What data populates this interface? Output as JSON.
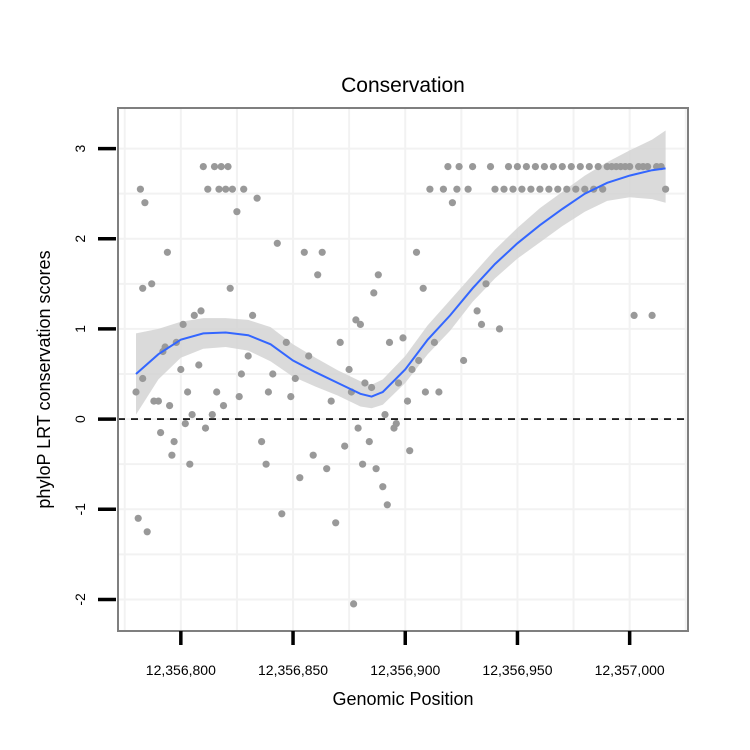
{
  "chart_data": {
    "type": "scatter",
    "title": "Conservation",
    "xlabel": "Genomic Position",
    "ylabel": "phyloP LRT conservation scores",
    "xlim": [
      12356772,
      12357026
    ],
    "ylim": [
      -2.35,
      3.45
    ],
    "x_ticks": [
      12356800,
      12356850,
      12356900,
      12356950,
      12357000
    ],
    "x_tick_labels": [
      "12,356,800",
      "12,356,850",
      "12,356,900",
      "12,356,950",
      "12,357,000"
    ],
    "y_ticks": [
      -2,
      -1,
      0,
      1,
      2,
      3
    ],
    "y_tick_labels": [
      "-2",
      "-1",
      "0",
      "1",
      "2",
      "3"
    ],
    "reference_line": {
      "y": 0,
      "style": "dashed"
    },
    "colors": {
      "points": "#999999",
      "smooth": "#3366ff",
      "band": "#d3d3d3",
      "panel_border": "#7f7f7f",
      "grid": "#f2f2f2"
    },
    "series": [
      {
        "name": "phyloP scores",
        "kind": "points",
        "x": [
          12356780,
          12356781,
          12356782,
          12356783,
          12356783,
          12356784,
          12356785,
          12356787,
          12356788,
          12356790,
          12356791,
          12356792,
          12356793,
          12356794,
          12356795,
          12356796,
          12356797,
          12356798,
          12356800,
          12356801,
          12356802,
          12356803,
          12356804,
          12356805,
          12356806,
          12356808,
          12356809,
          12356810,
          12356811,
          12356812,
          12356814,
          12356815,
          12356816,
          12356817,
          12356818,
          12356819,
          12356820,
          12356821,
          12356822,
          12356823,
          12356825,
          12356826,
          12356827,
          12356828,
          12356830,
          12356832,
          12356834,
          12356836,
          12356838,
          12356839,
          12356841,
          12356843,
          12356845,
          12356847,
          12356849,
          12356851,
          12356853,
          12356855,
          12356857,
          12356859,
          12356861,
          12356863,
          12356865,
          12356867,
          12356869,
          12356871,
          12356873,
          12356875,
          12356876,
          12356877,
          12356878,
          12356879,
          12356880,
          12356881,
          12356882,
          12356884,
          12356885,
          12356886,
          12356887,
          12356888,
          12356890,
          12356891,
          12356892,
          12356893,
          12356895,
          12356896,
          12356897,
          12356899,
          12356901,
          12356902,
          12356903,
          12356905,
          12356906,
          12356908,
          12356909,
          12356911,
          12356913,
          12356915,
          12356917,
          12356919,
          12356921,
          12356923,
          12356924,
          12356926,
          12356928,
          12356930,
          12356932,
          12356934,
          12356936,
          12356938,
          12356940,
          12356942,
          12356944,
          12356946,
          12356948,
          12356950,
          12356952,
          12356954,
          12356956,
          12356958,
          12356960,
          12356962,
          12356964,
          12356966,
          12356968,
          12356970,
          12356972,
          12356974,
          12356976,
          12356978,
          12356980,
          12356982,
          12356984,
          12356986,
          12356988,
          12356990,
          12356992,
          12356994,
          12356996,
          12356998,
          12357000,
          12357002,
          12357004,
          12357006,
          12357008,
          12357010,
          12357012,
          12357014,
          12357016
        ],
        "y": [
          0.3,
          -1.1,
          2.55,
          1.45,
          0.45,
          2.4,
          -1.25,
          1.5,
          0.2,
          0.2,
          -0.15,
          0.75,
          0.8,
          1.85,
          0.15,
          -0.4,
          -0.25,
          0.85,
          0.55,
          1.05,
          -0.05,
          0.3,
          -0.5,
          0.05,
          1.15,
          0.6,
          1.2,
          2.8,
          -0.1,
          2.55,
          0.05,
          2.8,
          0.3,
          2.55,
          2.8,
          0.15,
          2.55,
          2.8,
          1.45,
          2.55,
          2.3,
          0.25,
          0.5,
          2.55,
          0.7,
          1.15,
          2.45,
          -0.25,
          -0.5,
          0.3,
          0.5,
          1.95,
          -1.05,
          0.85,
          0.25,
          0.45,
          -0.65,
          1.85,
          0.7,
          -0.4,
          1.6,
          1.85,
          -0.55,
          0.2,
          -1.15,
          0.85,
          -0.3,
          0.55,
          0.3,
          -2.05,
          1.1,
          -0.1,
          1.05,
          -0.5,
          0.4,
          -0.25,
          0.35,
          1.4,
          -0.55,
          1.6,
          -0.75,
          0.05,
          -0.95,
          0.85,
          -0.1,
          -0.05,
          0.4,
          0.9,
          0.2,
          -0.35,
          0.55,
          1.85,
          0.65,
          1.45,
          0.3,
          2.55,
          0.85,
          0.3,
          2.55,
          2.8,
          2.4,
          2.55,
          2.8,
          0.65,
          2.55,
          2.8,
          1.2,
          1.05,
          1.5,
          2.8,
          2.55,
          1.0,
          2.55,
          2.8,
          2.55,
          2.8,
          2.55,
          2.8,
          2.55,
          2.8,
          2.55,
          2.8,
          2.55,
          2.8,
          2.55,
          2.8,
          2.55,
          2.8,
          2.55,
          2.8,
          2.55,
          2.8,
          2.55,
          2.8,
          2.55,
          2.8,
          2.8,
          2.8,
          2.8,
          2.8,
          2.8,
          1.15,
          2.8,
          2.8,
          2.8,
          1.15,
          2.8,
          2.8,
          2.55
        ]
      },
      {
        "name": "smooth fit",
        "kind": "line",
        "x": [
          12356780,
          12356790,
          12356800,
          12356810,
          12356820,
          12356830,
          12356840,
          12356850,
          12356860,
          12356870,
          12356880,
          12356885,
          12356890,
          12356900,
          12356910,
          12356920,
          12356930,
          12356940,
          12356950,
          12356960,
          12356970,
          12356980,
          12356990,
          12357000,
          12357010,
          12357016
        ],
        "y": [
          0.5,
          0.72,
          0.88,
          0.95,
          0.96,
          0.93,
          0.83,
          0.65,
          0.52,
          0.4,
          0.28,
          0.25,
          0.3,
          0.55,
          0.88,
          1.15,
          1.45,
          1.72,
          1.95,
          2.15,
          2.33,
          2.5,
          2.62,
          2.7,
          2.76,
          2.78
        ],
        "ci_upper": [
          0.95,
          1.0,
          1.08,
          1.12,
          1.12,
          1.1,
          1.02,
          0.83,
          0.68,
          0.54,
          0.42,
          0.38,
          0.44,
          0.7,
          1.04,
          1.32,
          1.6,
          1.88,
          2.12,
          2.34,
          2.52,
          2.7,
          2.85,
          2.98,
          3.1,
          3.2
        ],
        "ci_lower": [
          0.05,
          0.44,
          0.68,
          0.78,
          0.8,
          0.76,
          0.64,
          0.47,
          0.36,
          0.26,
          0.14,
          0.12,
          0.16,
          0.4,
          0.72,
          0.98,
          1.3,
          1.56,
          1.78,
          1.96,
          2.14,
          2.3,
          2.42,
          2.46,
          2.44,
          2.4
        ]
      }
    ]
  }
}
